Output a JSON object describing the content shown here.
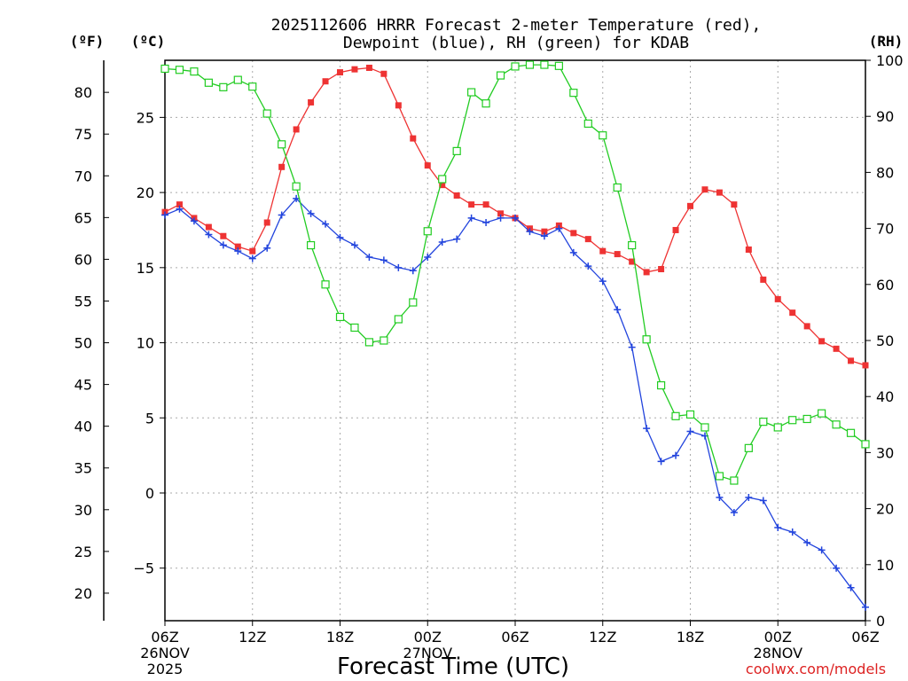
{
  "chart_data": {
    "type": "line",
    "title_line1": "2025112606 HRRR Forecast 2-meter Temperature (red),",
    "title_line2": "Dewpoint (blue), RH (green) for KDAB",
    "units": {
      "fahrenheit": "(ºF)",
      "celsius": "(ºC)",
      "rh": "(RH)"
    },
    "xlabel": "Forecast Time (UTC)",
    "credit": "coolwx.com/models",
    "x_range_hours": [
      0,
      48
    ],
    "celsius_range": [
      -8.5,
      28.8
    ],
    "rh_range": [
      0,
      100
    ],
    "x_ticks": [
      {
        "hour": 0,
        "label": "06Z",
        "date": "26NOV",
        "year": "2025"
      },
      {
        "hour": 6,
        "label": "12Z"
      },
      {
        "hour": 12,
        "label": "18Z"
      },
      {
        "hour": 18,
        "label": "00Z",
        "date": "27NOV"
      },
      {
        "hour": 24,
        "label": "06Z"
      },
      {
        "hour": 30,
        "label": "12Z"
      },
      {
        "hour": 36,
        "label": "18Z"
      },
      {
        "hour": 42,
        "label": "00Z",
        "date": "28NOV"
      },
      {
        "hour": 48,
        "label": "06Z"
      }
    ],
    "celsius_ticks": [
      -5,
      0,
      5,
      10,
      15,
      20,
      25
    ],
    "fahrenheit_ticks": [
      20,
      25,
      30,
      35,
      40,
      45,
      50,
      55,
      60,
      65,
      70,
      75,
      80
    ],
    "rh_ticks": [
      0,
      10,
      20,
      30,
      40,
      50,
      60,
      70,
      80,
      90,
      100
    ],
    "colors": {
      "temperature": "#ee3333",
      "dewpoint": "#2244dd",
      "rh": "#22cc22",
      "grid": "#aaaaaa",
      "credit": "#dd2222"
    },
    "series": [
      {
        "name": "Temperature (°C)",
        "key": "temperature",
        "values": [
          18.7,
          19.2,
          18.3,
          17.7,
          17.1,
          16.4,
          16.1,
          18.0,
          21.7,
          24.2,
          26.0,
          27.4,
          28.0,
          28.2,
          28.3,
          27.9,
          25.8,
          23.6,
          21.8,
          20.5,
          19.8,
          19.2,
          19.2,
          18.6,
          18.3,
          17.6,
          17.4,
          17.8,
          17.3,
          16.9,
          16.1,
          15.9,
          15.4,
          14.7,
          14.9,
          17.5,
          19.1,
          20.2,
          20.0,
          19.2,
          16.2,
          14.2,
          12.9,
          12.0,
          11.1,
          10.1,
          9.6,
          8.8,
          8.5
        ]
      },
      {
        "name": "Dewpoint (°C)",
        "key": "dewpoint",
        "values": [
          18.5,
          18.9,
          18.1,
          17.2,
          16.5,
          16.1,
          15.6,
          16.3,
          18.5,
          19.6,
          18.6,
          17.9,
          17.0,
          16.5,
          15.7,
          15.5,
          15.0,
          14.8,
          15.7,
          16.7,
          16.9,
          18.3,
          18.0,
          18.3,
          18.3,
          17.4,
          17.1,
          17.6,
          16.0,
          15.1,
          14.1,
          12.2,
          9.7,
          4.3,
          2.1,
          2.5,
          4.1,
          3.8,
          -0.3,
          -1.3,
          -0.3,
          -0.5,
          -2.3,
          -2.6,
          -3.3,
          -3.8,
          -5.0,
          -6.3,
          -7.6
        ]
      },
      {
        "name": "RH (%)",
        "key": "rh",
        "values": [
          98.5,
          98.3,
          98.0,
          96.0,
          95.2,
          96.5,
          95.3,
          90.5,
          85.0,
          77.5,
          67.0,
          60.0,
          54.2,
          52.3,
          49.7,
          50.0,
          53.8,
          56.8,
          69.5,
          78.8,
          83.8,
          94.3,
          92.3,
          97.3,
          98.9,
          99.2,
          99.2,
          99.0,
          94.2,
          88.7,
          86.6,
          77.3,
          67.0,
          50.2,
          42.0,
          36.5,
          36.8,
          34.5,
          25.8,
          25.0,
          30.8,
          35.5,
          34.5,
          35.8,
          36.0,
          37.0,
          35.0,
          33.5,
          31.5
        ]
      }
    ]
  }
}
